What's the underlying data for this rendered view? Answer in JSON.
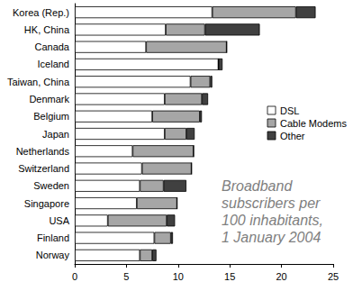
{
  "chart_data": {
    "type": "bar",
    "orientation": "horizontal",
    "stacked": true,
    "annotation": "Broadband\nsubscribers per\n100 inhabitants,\n1 January 2004",
    "categories": [
      "Korea (Rep.)",
      "HK, China",
      "Canada",
      "Iceland",
      "Taiwan, China",
      "Denmark",
      "Belgium",
      "Japan",
      "Netherlands",
      "Switzerland",
      "Sweden",
      "Singapore",
      "USA",
      "Finland",
      "Norway"
    ],
    "series": [
      {
        "name": "DSL",
        "color": "#ffffff",
        "values": [
          13.3,
          8.8,
          6.9,
          13.9,
          11.2,
          8.7,
          7.5,
          8.7,
          5.6,
          6.5,
          6.3,
          6.0,
          3.2,
          7.7,
          6.3
        ]
      },
      {
        "name": "Cable Modems",
        "color": "#a6a6a6",
        "values": [
          8.1,
          3.8,
          7.8,
          0,
          1.9,
          3.6,
          4.6,
          2.1,
          5.9,
          4.8,
          2.3,
          3.9,
          5.7,
          1.6,
          1.2
        ]
      },
      {
        "name": "Other",
        "color": "#404040",
        "values": [
          1.9,
          5.3,
          0,
          0.4,
          0.2,
          0.6,
          0.2,
          0.8,
          0,
          0,
          2.2,
          0,
          0.8,
          0.2,
          0.4
        ]
      }
    ],
    "xlim": [
      0,
      25
    ],
    "xticks": [
      0,
      5,
      10,
      15,
      20,
      25
    ],
    "grid": false,
    "legend": "right"
  }
}
